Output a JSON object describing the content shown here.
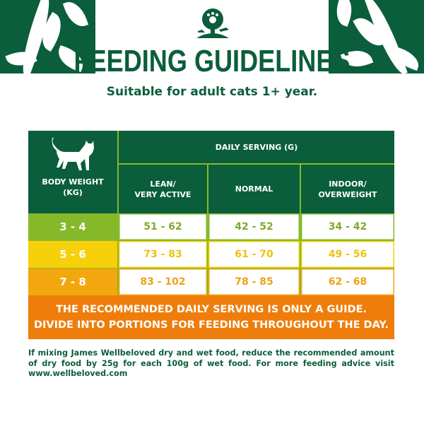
{
  "header": {
    "title": "FEEDING GUIDELINES",
    "subtitle": "Suitable for adult cats 1+ year.",
    "logo": "James Wellbeloved tree logo"
  },
  "colors": {
    "brand_green": "#0b5e3b",
    "lime": "#86b92a",
    "yellow": "#f7d00c",
    "amber": "#f3a70f",
    "orange": "#ef7d0b"
  },
  "table": {
    "weight_header": "BODY WEIGHT (KG)",
    "weight_header_lines": [
      "BODY WEIGHT",
      "(KG)"
    ],
    "icon": "cat-icon",
    "group_header": "DAILY SERVING (G)",
    "columns": [
      {
        "lines": [
          "LEAN/",
          "VERY ACTIVE"
        ]
      },
      {
        "lines": [
          "NORMAL"
        ]
      },
      {
        "lines": [
          "INDOOR/",
          "OVERWEIGHT"
        ]
      }
    ],
    "rows": [
      {
        "weight": "3 - 4",
        "values": [
          "51 - 62",
          "42 - 52",
          "34 - 42"
        ],
        "color": "#86b92a",
        "text_color": "#7dab2c"
      },
      {
        "weight": "5 - 6",
        "values": [
          "73 - 83",
          "61 - 70",
          "49 - 56"
        ],
        "color": "#f7d00c",
        "text_color": "#f0c10f"
      },
      {
        "weight": "7 - 8",
        "values": [
          "83 - 102",
          "78 - 85",
          "62 - 68"
        ],
        "color": "#f3a70f",
        "text_color": "#eea116"
      }
    ],
    "note_lines": [
      "THE RECOMMENDED DAILY SERVING IS ONLY A GUIDE.",
      "DIVIDE INTO PORTIONS FOR FEEDING THROUGHOUT THE DAY."
    ]
  },
  "footnote": "If mixing James Wellbeloved dry and wet food, reduce the recommended amount of dry food by 25g for each 100g of wet food. For more feeding advice visit www.wellbeloved.com"
}
